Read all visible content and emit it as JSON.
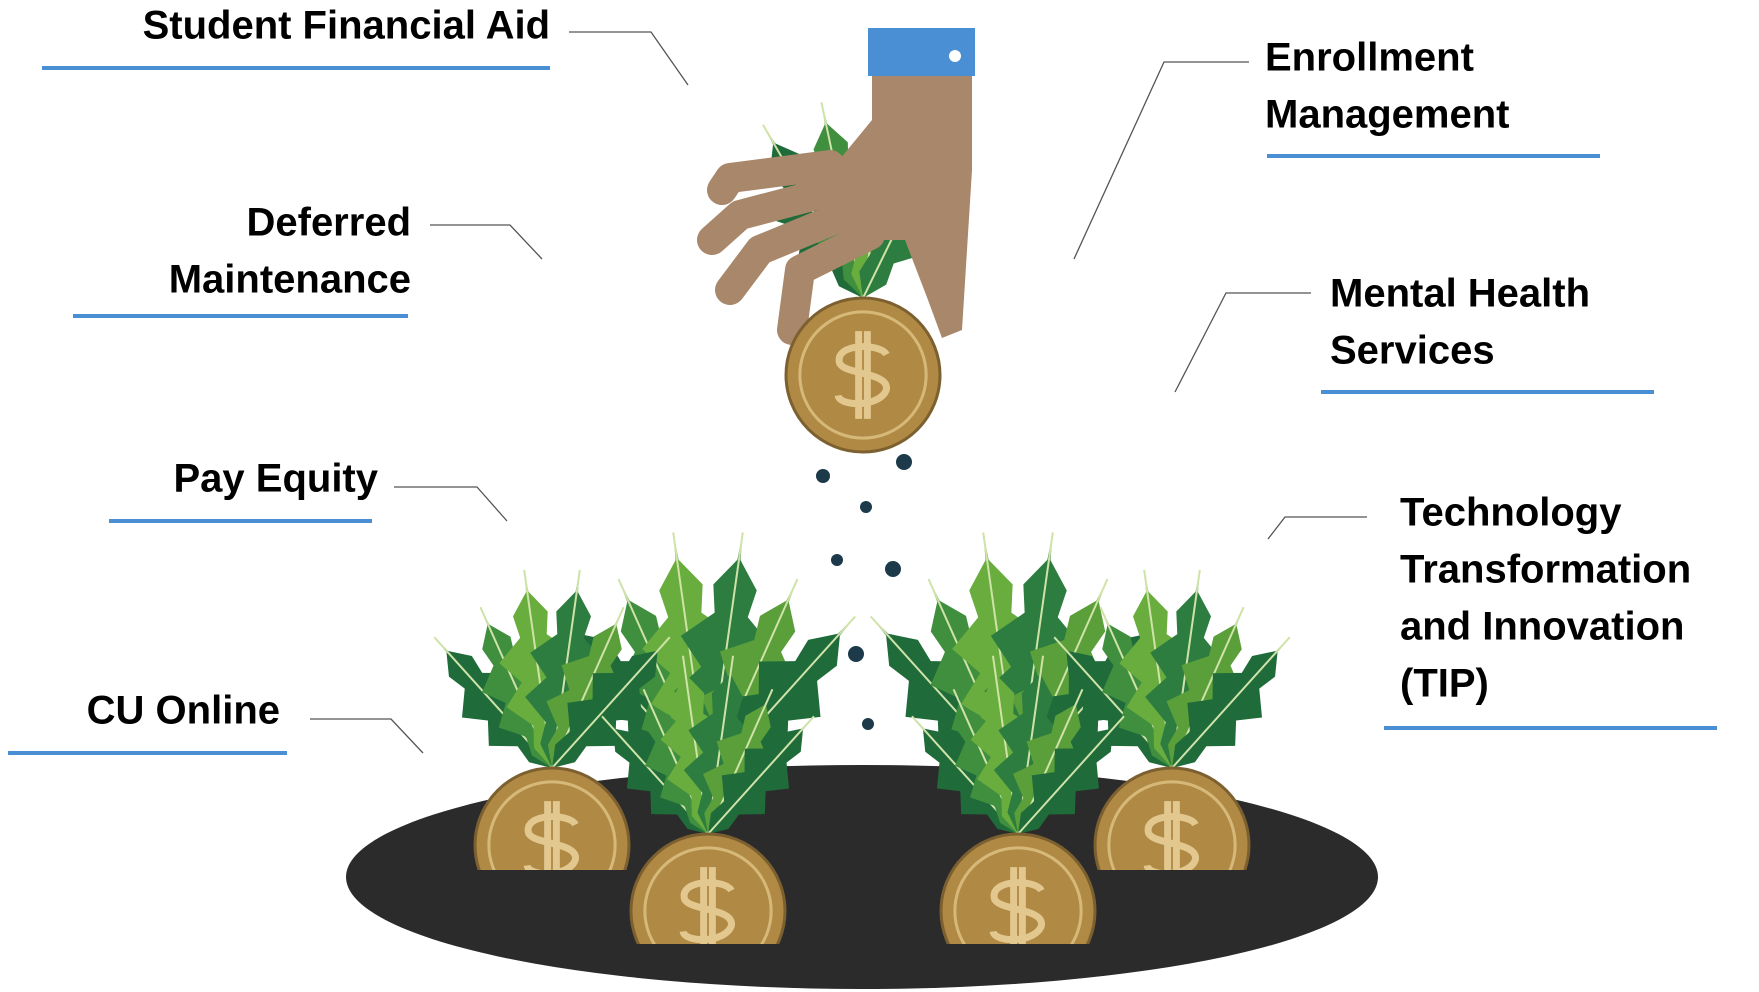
{
  "labels": [
    {
      "lines": [
        "Student Financial Aid"
      ]
    },
    {
      "lines": [
        "Deferred",
        "Maintenance"
      ]
    },
    {
      "lines": [
        "Pay Equity"
      ]
    },
    {
      "lines": [
        "CU Online"
      ]
    },
    {
      "lines": [
        "Enrollment",
        "Management"
      ]
    },
    {
      "lines": [
        "Mental Health",
        "Services"
      ]
    },
    {
      "lines": [
        "Technology",
        "Transformation",
        "and Innovation",
        "(TIP)"
      ]
    }
  ]
}
